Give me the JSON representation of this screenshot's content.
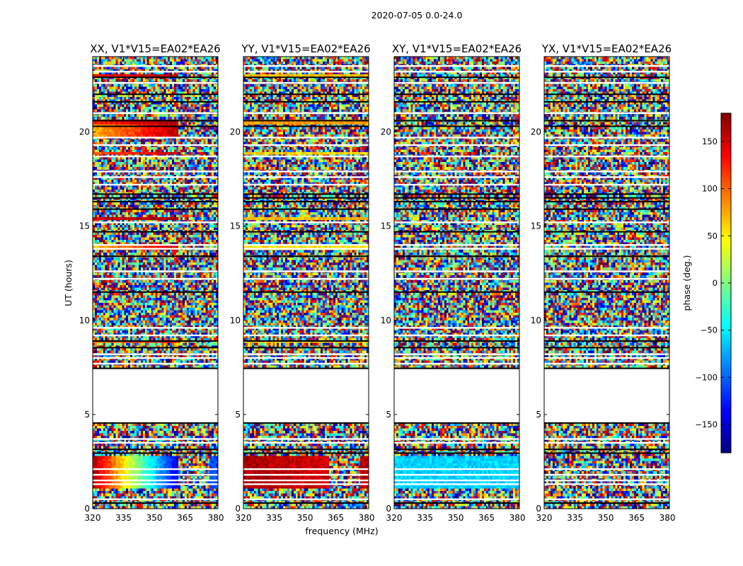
{
  "figure": {
    "suptitle": "2020-07-05 0.0-24.0",
    "ylabel": "UT (hours)",
    "xlabel": "frequency (MHz)"
  },
  "chart_data": {
    "type": "heatmap",
    "title": "2020-07-05 0.0-24.0",
    "xlabel": "frequency (MHz)",
    "ylabel": "UT (hours)",
    "xlim": [
      320,
      381
    ],
    "ylim": [
      0,
      24
    ],
    "xticks": [
      320,
      335,
      350,
      365,
      380
    ],
    "yticks": [
      0,
      5,
      10,
      15,
      20
    ],
    "value_label": "phase (deg.)",
    "value_range": [
      -180,
      180
    ],
    "colorbar_ticks": [
      150,
      100,
      50,
      0,
      -50,
      -100,
      -150
    ],
    "colormap": [
      "#00007f",
      "#0000ff",
      "#007fff",
      "#00ffff",
      "#7fff7f",
      "#ffff00",
      "#ff7f00",
      "#ff0000",
      "#7f0000"
    ],
    "blank_ut_ranges": [
      [
        4.6,
        7.4
      ]
    ],
    "black_line_ut": [
      0.3,
      2.95,
      3.15,
      4.55,
      7.45,
      8.55,
      8.9,
      11.5,
      13.4,
      14.7,
      15.9,
      16.3,
      16.5,
      16.7,
      20.3,
      20.6,
      21.6,
      22.0,
      22.9
    ],
    "white_line_ut": [
      0.5,
      1.3,
      1.5,
      1.8,
      2.1,
      3.5,
      3.7,
      7.7,
      8.0,
      8.2,
      9.2,
      9.6,
      12.2,
      12.6,
      13.8,
      14.0,
      15.2,
      17.2,
      17.6,
      17.9,
      18.7,
      19.3,
      19.7,
      21.0,
      22.6,
      23.2,
      23.5
    ],
    "panels": [
      {
        "title": "XX, V1*V15=EA02*EA26",
        "coherent_regions": [
          {
            "ut_range": [
              1.1,
              2.8
            ],
            "freq_range": [
              320,
              362
            ],
            "phase_start": 170,
            "phase_end": -150
          },
          {
            "ut_range": [
              1.1,
              2.8
            ],
            "freq_range": [
              377,
              381
            ],
            "phase_start": -110,
            "phase_end": -110
          },
          {
            "ut_range": [
              19.8,
              20.4
            ],
            "freq_range": [
              320,
              362
            ],
            "phase_start": 70,
            "phase_end": 160
          },
          {
            "ut_range": [
              20.4,
              20.6
            ],
            "freq_range": [
              320,
              362
            ],
            "phase_start": 120,
            "phase_end": 170
          },
          {
            "ut_range": [
              13.8,
              14.0
            ],
            "freq_range": [
              320,
              362
            ],
            "phase_start": 70,
            "phase_end": 160
          },
          {
            "ut_range": [
              15.3,
              15.45
            ],
            "freq_range": [
              320,
              362
            ],
            "phase_start": 150,
            "phase_end": 170
          },
          {
            "ut_range": [
              18.8,
              18.95
            ],
            "freq_range": [
              320,
              362
            ],
            "phase_start": 100,
            "phase_end": 160
          },
          {
            "ut_range": [
              22.9,
              23.1
            ],
            "freq_range": [
              320,
              362
            ],
            "phase_start": 130,
            "phase_end": 170
          },
          {
            "ut_range": [
              8.8,
              8.95
            ],
            "freq_range": [
              320,
              362
            ],
            "phase_start": 90,
            "phase_end": 150
          }
        ]
      },
      {
        "title": "YY, V1*V15=EA02*EA26",
        "coherent_regions": [
          {
            "ut_range": [
              1.1,
              2.8
            ],
            "freq_range": [
              320,
              362
            ],
            "phase_start": 165,
            "phase_end": 150
          },
          {
            "ut_range": [
              1.1,
              2.8
            ],
            "freq_range": [
              377,
              381
            ],
            "phase_start": 160,
            "phase_end": 160
          },
          {
            "ut_range": [
              20.4,
              20.6
            ],
            "freq_range": [
              320,
              381
            ],
            "phase_start": 80,
            "phase_end": 80
          },
          {
            "ut_range": [
              13.8,
              14.0
            ],
            "freq_range": [
              320,
              381
            ],
            "phase_start": 55,
            "phase_end": 55
          },
          {
            "ut_range": [
              18.8,
              18.95
            ],
            "freq_range": [
              320,
              381
            ],
            "phase_start": 60,
            "phase_end": 60
          },
          {
            "ut_range": [
              22.9,
              23.1
            ],
            "freq_range": [
              320,
              381
            ],
            "phase_start": 70,
            "phase_end": 70
          },
          {
            "ut_range": [
              15.3,
              15.45
            ],
            "freq_range": [
              320,
              381
            ],
            "phase_start": 70,
            "phase_end": 70
          },
          {
            "ut_range": [
              8.8,
              8.95
            ],
            "freq_range": [
              320,
              381
            ],
            "phase_start": 60,
            "phase_end": 60
          }
        ]
      },
      {
        "title": "XY, V1*V15=EA02*EA26",
        "coherent_regions": [
          {
            "ut_range": [
              1.1,
              2.8
            ],
            "freq_range": [
              320,
              381
            ],
            "phase_start": -60,
            "phase_end": -60
          }
        ]
      },
      {
        "title": "YX, V1*V15=EA02*EA26",
        "coherent_regions": []
      }
    ]
  }
}
